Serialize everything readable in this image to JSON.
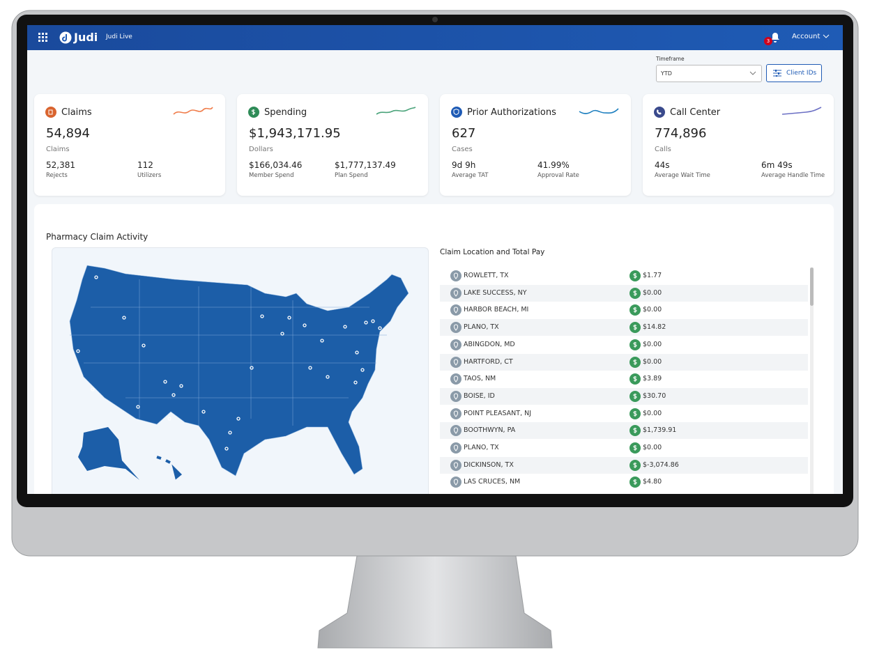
{
  "header": {
    "app_name": "Judi",
    "product": "Judi Live",
    "notifications": "3",
    "account": "Account"
  },
  "filters": {
    "timeframe_label": "Timeframe",
    "timeframe": "YTD",
    "client_ids": "Client IDs"
  },
  "cards": [
    {
      "title": "Claims",
      "value": "54,894",
      "unit": "Claims",
      "stats": [
        {
          "value": "52,381",
          "label": "Rejects"
        },
        {
          "value": "112",
          "label": "Utilizers"
        }
      ]
    },
    {
      "title": "Spending",
      "value": "$1,943,171.95",
      "unit": "Dollars",
      "stats": [
        {
          "value": "$166,034.46",
          "label": "Member Spend"
        },
        {
          "value": "$1,777,137.49",
          "label": "Plan Spend"
        }
      ]
    },
    {
      "title": "Prior Authorizations",
      "value": "627",
      "unit": "Cases",
      "stats": [
        {
          "value": "9d 9h",
          "label": "Average TAT"
        },
        {
          "value": "41.99%",
          "label": "Approval Rate"
        }
      ]
    },
    {
      "title": "Call Center",
      "value": "774,896",
      "unit": "Calls",
      "stats": [
        {
          "value": "44s",
          "label": "Average Wait Time"
        },
        {
          "value": "6m 49s",
          "label": "Average Handle Time"
        }
      ]
    }
  ],
  "activity": {
    "title": "Pharmacy Claim Activity",
    "table_title": "Claim Location and Total Pay",
    "rows": [
      {
        "location": "ROWLETT, TX",
        "pay": "$1.77"
      },
      {
        "location": "LAKE SUCCESS, NY",
        "pay": "$0.00"
      },
      {
        "location": "HARBOR BEACH, MI",
        "pay": "$0.00"
      },
      {
        "location": "PLANO, TX",
        "pay": "$14.82"
      },
      {
        "location": "ABINGDON, MD",
        "pay": "$0.00"
      },
      {
        "location": "HARTFORD, CT",
        "pay": "$0.00"
      },
      {
        "location": "TAOS, NM",
        "pay": "$3.89"
      },
      {
        "location": "BOISE, ID",
        "pay": "$30.70"
      },
      {
        "location": "POINT PLEASANT, NJ",
        "pay": "$0.00"
      },
      {
        "location": "BOOTHWYN, PA",
        "pay": "$1,739.91"
      },
      {
        "location": "PLANO, TX",
        "pay": "$0.00"
      },
      {
        "location": "DICKINSON, TX",
        "pay": "$-3,074.86"
      },
      {
        "location": "LAS CRUCES, NM",
        "pay": "$4.80"
      }
    ]
  }
}
